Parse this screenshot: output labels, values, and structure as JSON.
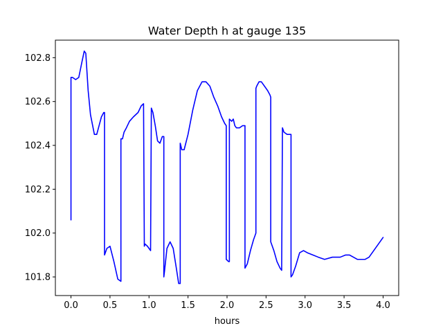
{
  "chart_data": {
    "type": "line",
    "title": "Water Depth h at gauge 135",
    "xlabel": "hours",
    "ylabel": "",
    "xlim": [
      -0.2,
      4.2
    ],
    "ylim": [
      101.715,
      102.88
    ],
    "xticks": [
      0.0,
      0.5,
      1.0,
      1.5,
      2.0,
      2.5,
      3.0,
      3.5,
      4.0
    ],
    "xtick_labels": [
      "0.0",
      "0.5",
      "1.0",
      "1.5",
      "2.0",
      "2.5",
      "3.0",
      "3.5",
      "4.0"
    ],
    "yticks": [
      101.8,
      102.0,
      102.2,
      102.4,
      102.6,
      102.8
    ],
    "ytick_labels": [
      "101.8",
      "102.0",
      "102.2",
      "102.4",
      "102.6",
      "102.8"
    ],
    "grid": false,
    "line_color": "#0000ff",
    "series": [
      {
        "name": "",
        "x": [
          0.0,
          0.0,
          0.02,
          0.06,
          0.1,
          0.14,
          0.17,
          0.19,
          0.22,
          0.25,
          0.3,
          0.33,
          0.36,
          0.39,
          0.42,
          0.43,
          0.43,
          0.46,
          0.5,
          0.55,
          0.6,
          0.64,
          0.64,
          0.65,
          0.66,
          0.68,
          0.71,
          0.75,
          0.8,
          0.86,
          0.9,
          0.93,
          0.94,
          0.95,
          0.98,
          1.02,
          1.03,
          1.05,
          1.08,
          1.11,
          1.14,
          1.17,
          1.19,
          1.19,
          1.2,
          1.23,
          1.27,
          1.31,
          1.35,
          1.38,
          1.4,
          1.4,
          1.42,
          1.45,
          1.5,
          1.56,
          1.62,
          1.68,
          1.73,
          1.78,
          1.83,
          1.88,
          1.93,
          1.97,
          1.99,
          1.99,
          2.02,
          2.03,
          2.03,
          2.06,
          2.08,
          2.1,
          2.12,
          2.16,
          2.2,
          2.23,
          2.23,
          2.26,
          2.3,
          2.34,
          2.37,
          2.37,
          2.38,
          2.41,
          2.44,
          2.48,
          2.52,
          2.55,
          2.56,
          2.56,
          2.6,
          2.64,
          2.68,
          2.7,
          2.71,
          2.72,
          2.73,
          2.77,
          2.81,
          2.82,
          2.82,
          2.84,
          2.88,
          2.93,
          2.98,
          3.03,
          3.1,
          3.17,
          3.25,
          3.35,
          3.45,
          3.52,
          3.57,
          3.62,
          3.67,
          3.72,
          3.77,
          3.82,
          3.88,
          3.94,
          4.0
        ],
        "y": [
          102.06,
          102.71,
          102.71,
          102.7,
          102.71,
          102.78,
          102.83,
          102.82,
          102.65,
          102.54,
          102.45,
          102.45,
          102.49,
          102.53,
          102.55,
          102.55,
          101.9,
          101.93,
          101.94,
          101.87,
          101.79,
          101.78,
          102.43,
          102.43,
          102.43,
          102.46,
          102.48,
          102.51,
          102.53,
          102.55,
          102.58,
          102.59,
          101.94,
          101.95,
          101.94,
          101.92,
          102.57,
          102.55,
          102.49,
          102.42,
          102.41,
          102.44,
          102.44,
          101.8,
          101.83,
          101.93,
          101.96,
          101.93,
          101.84,
          101.77,
          101.77,
          102.41,
          102.38,
          102.38,
          102.45,
          102.56,
          102.65,
          102.69,
          102.69,
          102.67,
          102.62,
          102.58,
          102.53,
          102.5,
          102.49,
          101.88,
          101.87,
          101.87,
          102.52,
          102.51,
          102.52,
          102.49,
          102.48,
          102.48,
          102.49,
          102.49,
          101.84,
          101.86,
          101.92,
          101.97,
          102.0,
          102.66,
          102.67,
          102.69,
          102.69,
          102.67,
          102.65,
          102.63,
          102.62,
          101.96,
          101.92,
          101.87,
          101.84,
          101.83,
          102.48,
          102.47,
          102.46,
          102.45,
          102.45,
          102.45,
          101.8,
          101.81,
          101.85,
          101.91,
          101.92,
          101.91,
          101.9,
          101.89,
          101.88,
          101.89,
          101.89,
          101.9,
          101.9,
          101.89,
          101.88,
          101.88,
          101.88,
          101.89,
          101.92,
          101.95,
          101.98
        ]
      }
    ]
  }
}
